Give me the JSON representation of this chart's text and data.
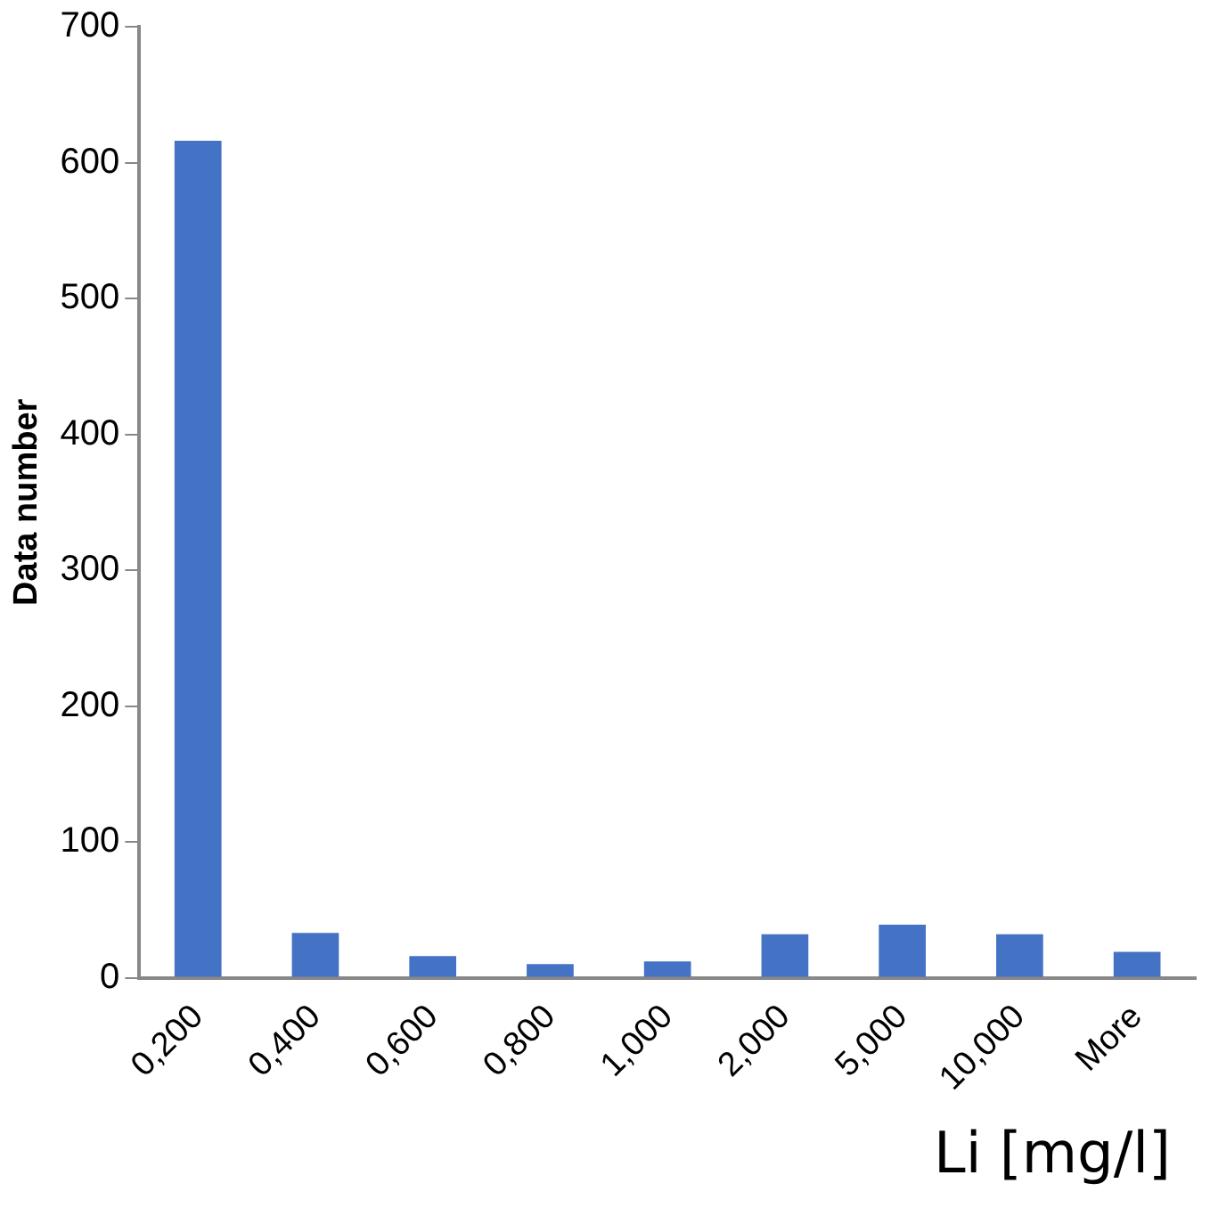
{
  "chart_data": {
    "type": "bar",
    "xlabel": "Li [mg/l]",
    "ylabel": "Data number",
    "categories": [
      "0,200",
      "0,400",
      "0,600",
      "0,800",
      "1,000",
      "2,000",
      "5,000",
      "10,000",
      "More"
    ],
    "values": [
      616,
      33,
      16,
      10,
      12,
      32,
      39,
      32,
      19
    ],
    "color": "#4472c4",
    "ylim": [
      0,
      700
    ],
    "yticks": [
      0,
      100,
      200,
      300,
      400,
      500,
      600,
      700
    ],
    "grid": false,
    "legend": false
  }
}
